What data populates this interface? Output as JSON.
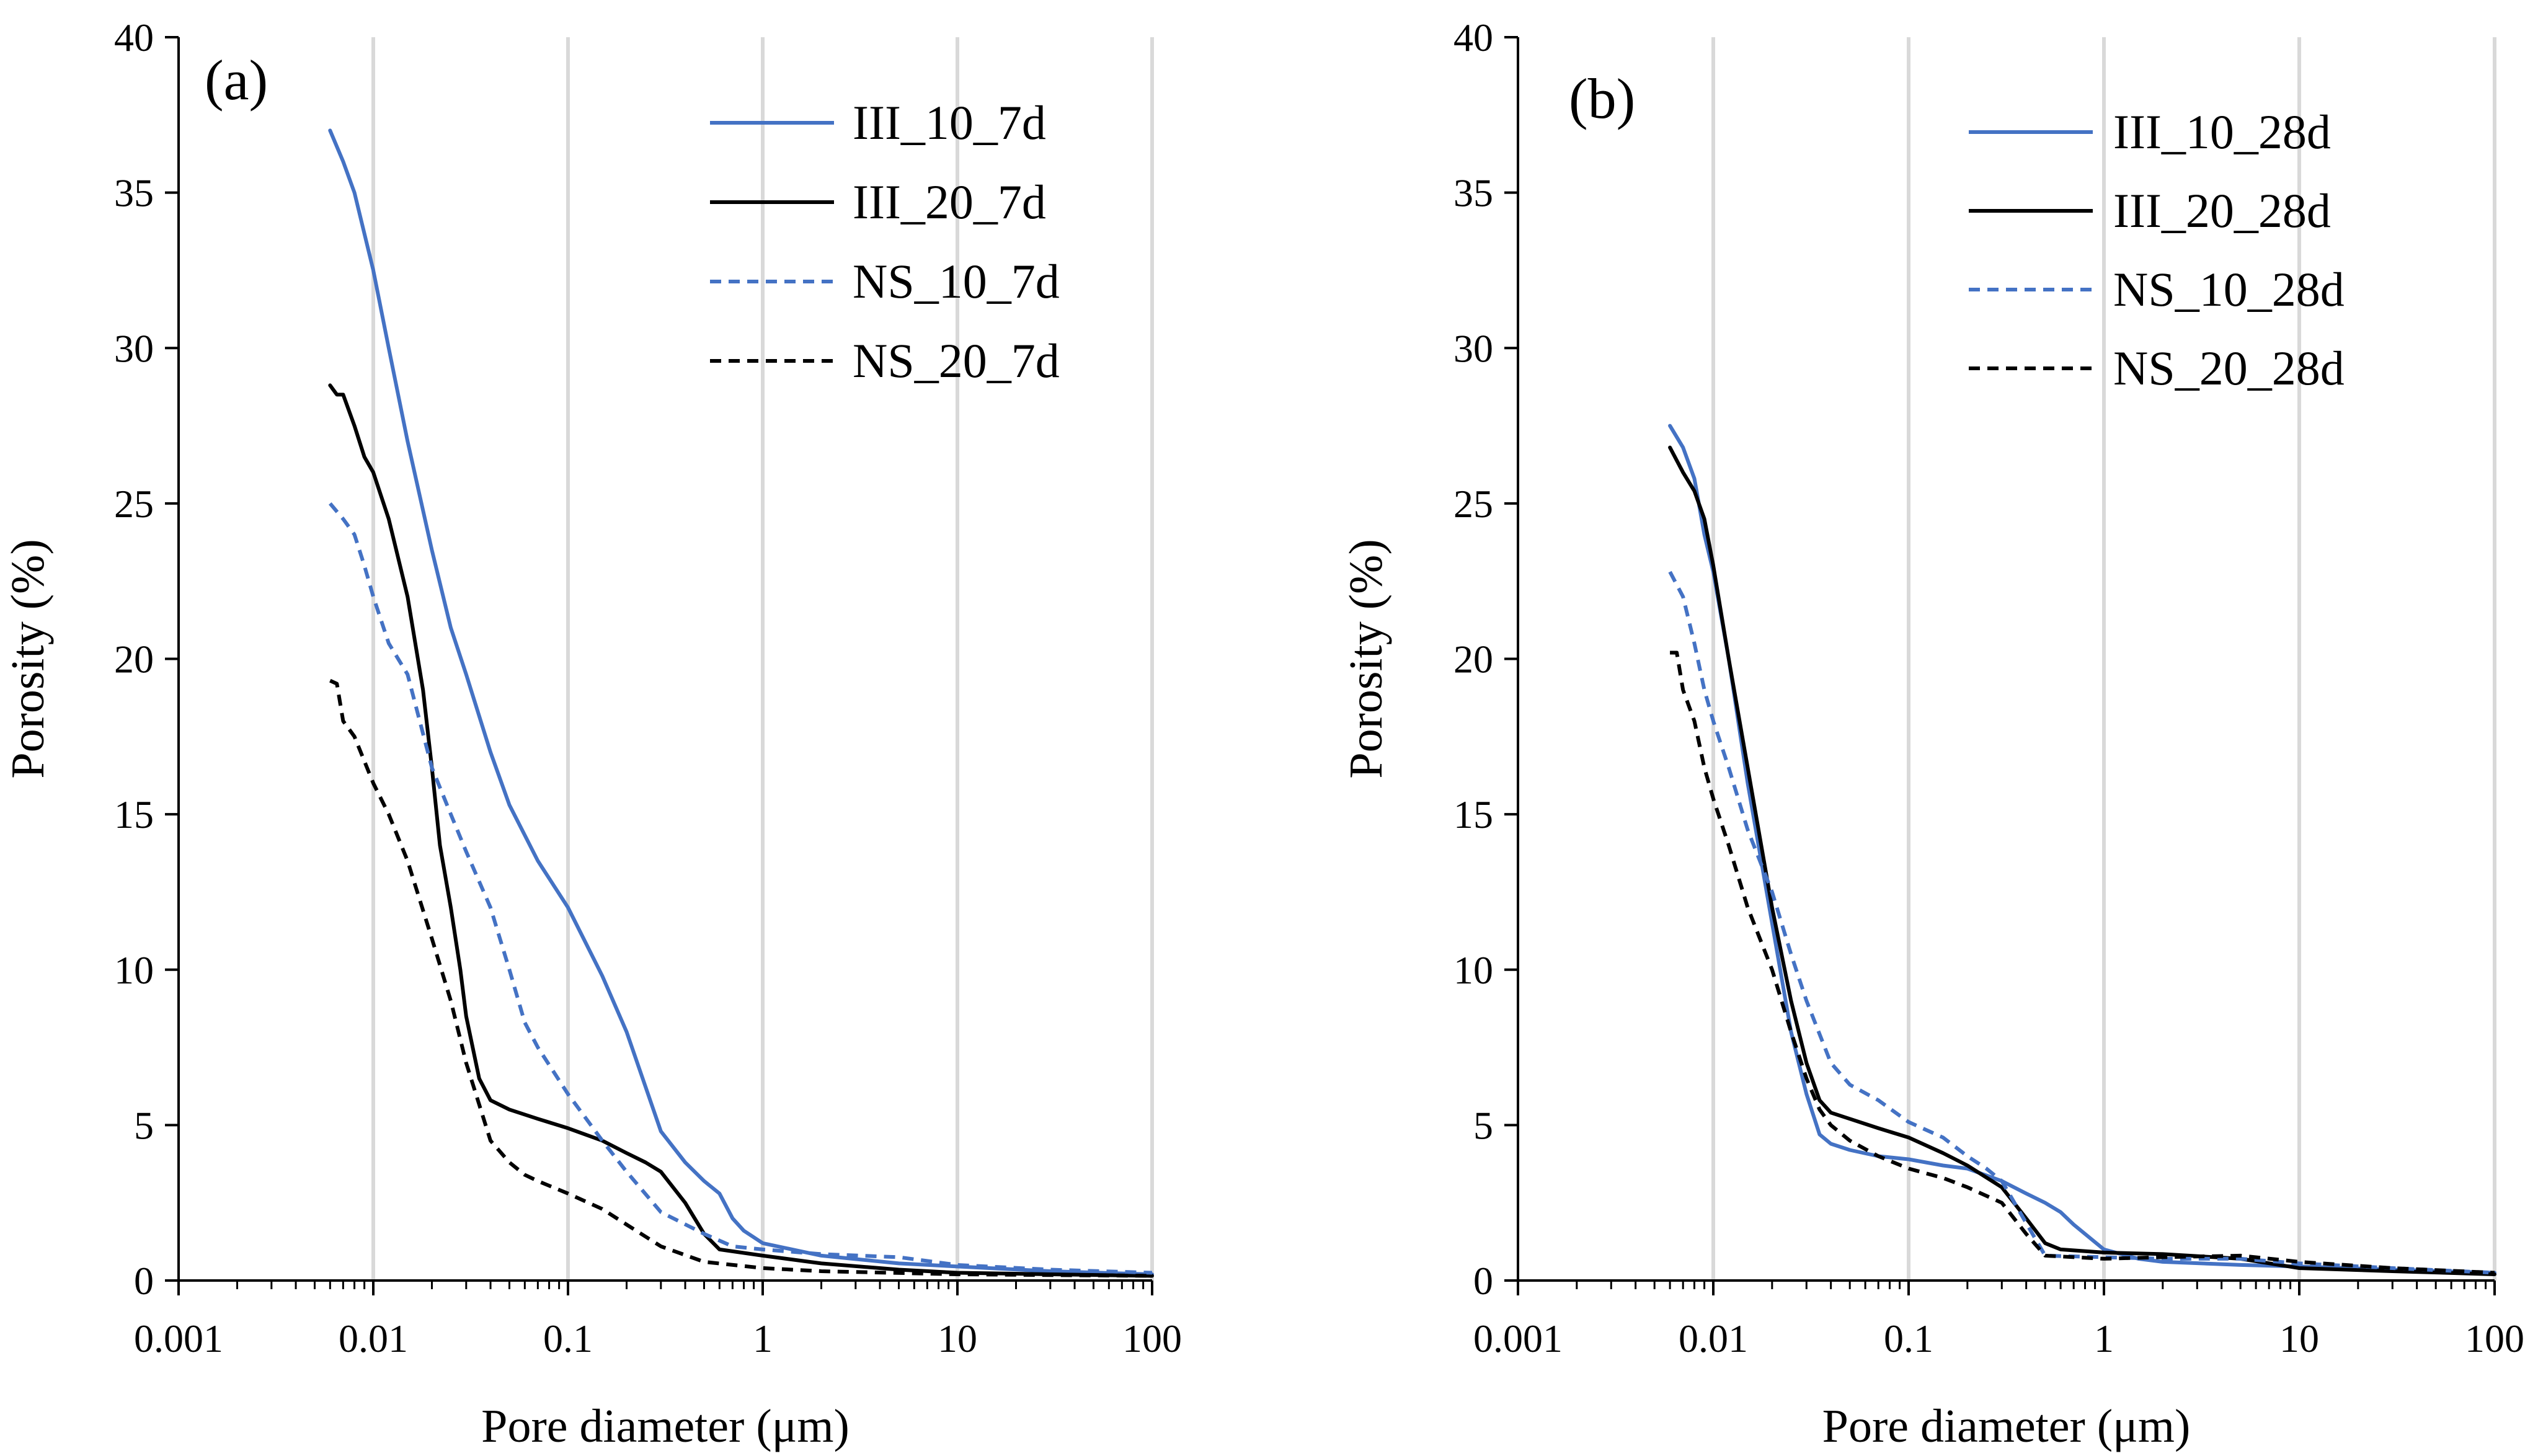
{
  "colors": {
    "blue": "#4472C4",
    "black": "#000000",
    "grid": "#D9D9D9"
  },
  "chart_data": [
    {
      "type": "line",
      "panel_label": "(a)",
      "xlabel": "Pore diameter (μm)",
      "ylabel": "Porosity (%)",
      "xscale": "log",
      "xlim": [
        0.001,
        100
      ],
      "ylim": [
        0,
        40
      ],
      "xtick_labels": [
        "0.001",
        "0.01",
        "0.1",
        "1",
        "10",
        "100"
      ],
      "ytick_labels": [
        "0",
        "5",
        "10",
        "15",
        "20",
        "25",
        "30",
        "35",
        "40"
      ],
      "grid": "vertical major gridlines",
      "legend_position": "top-right",
      "series": [
        {
          "name": "III_10_7d",
          "color": "#4472C4",
          "style": "solid",
          "x": [
            0.006,
            0.007,
            0.008,
            0.01,
            0.012,
            0.015,
            0.02,
            0.025,
            0.03,
            0.04,
            0.05,
            0.07,
            0.1,
            0.15,
            0.2,
            0.3,
            0.4,
            0.5,
            0.6,
            0.7,
            0.8,
            1,
            2,
            5,
            10,
            30,
            100
          ],
          "y": [
            37,
            36,
            35,
            32.5,
            30,
            27,
            23.5,
            21,
            19.5,
            17,
            15.3,
            13.5,
            12,
            9.8,
            8,
            4.8,
            3.8,
            3.2,
            2.8,
            2,
            1.6,
            1.2,
            0.8,
            0.55,
            0.45,
            0.3,
            0.2
          ]
        },
        {
          "name": "III_20_7d",
          "color": "#000000",
          "style": "solid",
          "x": [
            0.006,
            0.0065,
            0.007,
            0.008,
            0.009,
            0.01,
            0.012,
            0.015,
            0.018,
            0.02,
            0.022,
            0.025,
            0.028,
            0.03,
            0.035,
            0.04,
            0.05,
            0.07,
            0.1,
            0.15,
            0.2,
            0.25,
            0.3,
            0.4,
            0.5,
            0.6,
            1,
            2,
            5,
            10,
            30,
            100
          ],
          "y": [
            28.8,
            28.5,
            28.5,
            27.5,
            26.5,
            26,
            24.5,
            22,
            19,
            16.5,
            14,
            12,
            10,
            8.5,
            6.5,
            5.8,
            5.5,
            5.2,
            4.9,
            4.5,
            4.1,
            3.8,
            3.5,
            2.5,
            1.5,
            1,
            0.8,
            0.55,
            0.35,
            0.25,
            0.2,
            0.15
          ]
        },
        {
          "name": "NS_10_7d",
          "color": "#4472C4",
          "style": "dashed",
          "x": [
            0.006,
            0.007,
            0.008,
            0.009,
            0.01,
            0.012,
            0.015,
            0.02,
            0.025,
            0.03,
            0.04,
            0.05,
            0.06,
            0.07,
            0.1,
            0.15,
            0.2,
            0.3,
            0.5,
            0.7,
            1,
            2,
            5,
            10,
            30,
            100
          ],
          "y": [
            25,
            24.5,
            24,
            23,
            22,
            20.5,
            19.5,
            16.5,
            15,
            13.8,
            12,
            10,
            8.3,
            7.5,
            6,
            4.5,
            3.5,
            2.2,
            1.5,
            1.1,
            1,
            0.85,
            0.75,
            0.5,
            0.35,
            0.25
          ]
        },
        {
          "name": "NS_20_7d",
          "color": "#000000",
          "style": "dashed",
          "x": [
            0.006,
            0.0065,
            0.007,
            0.008,
            0.01,
            0.012,
            0.015,
            0.02,
            0.025,
            0.03,
            0.04,
            0.05,
            0.06,
            0.07,
            0.1,
            0.15,
            0.2,
            0.3,
            0.5,
            1,
            2,
            10,
            100
          ],
          "y": [
            19.3,
            19.2,
            18,
            17.5,
            16,
            15,
            13.5,
            11,
            9,
            7,
            4.5,
            3.8,
            3.4,
            3.2,
            2.8,
            2.3,
            1.8,
            1.1,
            0.6,
            0.4,
            0.3,
            0.2,
            0.15
          ]
        }
      ]
    },
    {
      "type": "line",
      "panel_label": "(b)",
      "xlabel": "Pore diameter (μm)",
      "ylabel": "Porosity (%)",
      "xscale": "log",
      "xlim": [
        0.001,
        100
      ],
      "ylim": [
        0,
        40
      ],
      "xtick_labels": [
        "0.001",
        "0.01",
        "0.1",
        "1",
        "10",
        "100"
      ],
      "ytick_labels": [
        "0",
        "5",
        "10",
        "15",
        "20",
        "25",
        "30",
        "35",
        "40"
      ],
      "grid": "vertical major gridlines",
      "legend_position": "top-right",
      "series": [
        {
          "name": "III_10_28d",
          "color": "#4472C4",
          "style": "solid",
          "x": [
            0.006,
            0.007,
            0.008,
            0.009,
            0.01,
            0.012,
            0.015,
            0.02,
            0.025,
            0.03,
            0.035,
            0.04,
            0.05,
            0.07,
            0.1,
            0.15,
            0.2,
            0.3,
            0.4,
            0.5,
            0.6,
            0.7,
            1,
            1.5,
            2,
            5,
            10,
            30,
            100
          ],
          "y": [
            27.5,
            26.8,
            25.8,
            24,
            22.8,
            20,
            16,
            11.5,
            8,
            6,
            4.7,
            4.4,
            4.2,
            4.0,
            3.9,
            3.7,
            3.6,
            3.2,
            2.8,
            2.5,
            2.2,
            1.8,
            1.0,
            0.7,
            0.6,
            0.5,
            0.45,
            0.35,
            0.25
          ]
        },
        {
          "name": "III_20_28d",
          "color": "#000000",
          "style": "solid",
          "x": [
            0.006,
            0.007,
            0.008,
            0.009,
            0.01,
            0.012,
            0.015,
            0.02,
            0.025,
            0.03,
            0.035,
            0.04,
            0.05,
            0.07,
            0.1,
            0.15,
            0.2,
            0.3,
            0.4,
            0.5,
            0.6,
            1,
            2,
            5,
            10,
            30,
            100
          ],
          "y": [
            26.8,
            26,
            25.4,
            24.5,
            23,
            20,
            16.5,
            12,
            9,
            7,
            5.8,
            5.4,
            5.2,
            4.9,
            4.6,
            4.1,
            3.7,
            3.0,
            2.0,
            1.2,
            1.0,
            0.9,
            0.85,
            0.7,
            0.4,
            0.3,
            0.2
          ]
        },
        {
          "name": "NS_10_28d",
          "color": "#4472C4",
          "style": "dashed",
          "x": [
            0.006,
            0.007,
            0.008,
            0.009,
            0.01,
            0.012,
            0.015,
            0.02,
            0.025,
            0.03,
            0.04,
            0.05,
            0.07,
            0.1,
            0.15,
            0.2,
            0.25,
            0.3,
            0.5,
            1,
            2,
            5,
            10,
            30,
            100
          ],
          "y": [
            22.8,
            22,
            20.5,
            19,
            18,
            16.5,
            14.5,
            12.5,
            10.5,
            9,
            7,
            6.3,
            5.8,
            5.1,
            4.6,
            4,
            3.6,
            3.2,
            0.8,
            0.75,
            0.7,
            0.7,
            0.55,
            0.4,
            0.25
          ]
        },
        {
          "name": "NS_20_28d",
          "color": "#000000",
          "style": "dashed",
          "x": [
            0.006,
            0.0065,
            0.007,
            0.008,
            0.009,
            0.01,
            0.012,
            0.015,
            0.02,
            0.025,
            0.03,
            0.035,
            0.04,
            0.05,
            0.07,
            0.1,
            0.15,
            0.2,
            0.3,
            0.4,
            0.5,
            1,
            2,
            5,
            10,
            30,
            100
          ],
          "y": [
            20.2,
            20.2,
            19,
            18,
            16.5,
            15.5,
            14,
            12,
            10,
            8,
            6.5,
            5.5,
            5,
            4.5,
            4,
            3.6,
            3.3,
            3,
            2.5,
            1.5,
            0.8,
            0.7,
            0.75,
            0.8,
            0.6,
            0.4,
            0.25
          ]
        }
      ]
    }
  ]
}
